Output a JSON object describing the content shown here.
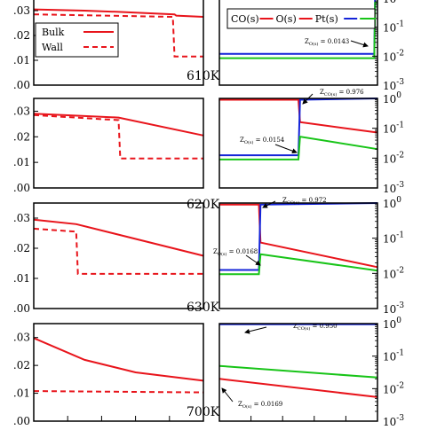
{
  "colors": {
    "red": "#e8141b",
    "blue": "#1424d8",
    "green": "#18c418",
    "frame": "#000000"
  },
  "legend_left": [
    {
      "label": "Bulk",
      "style": "solid"
    },
    {
      "label": "Wall",
      "style": "dashed"
    }
  ],
  "legend_right": [
    {
      "label": "CO(s)",
      "color": "#e8141b"
    },
    {
      "label": "O(s)",
      "color": "#e8141b"
    },
    {
      "label": "Pt(s)",
      "color": "#1424d8"
    },
    {
      "label": "",
      "color": "#18c418"
    }
  ],
  "chart_data": [
    {
      "type": "line",
      "temperature": "610K",
      "left": {
        "ylim": [
          0,
          0.035
        ],
        "yticks": [
          ".00",
          ".01",
          ".02",
          ".03"
        ],
        "series": [
          {
            "name": "Bulk",
            "x": [
              0,
              0.3,
              0.5,
              0.83,
              0.84,
              1.0
            ],
            "y": [
              0.0305,
              0.03,
              0.0295,
              0.0285,
              0.028,
              0.0275
            ]
          },
          {
            "name": "Wall",
            "x": [
              0,
              0.82,
              0.83,
              1.0
            ],
            "y": [
              0.0285,
              0.0275,
              0.0115,
              0.0115
            ]
          }
        ]
      },
      "right": {
        "yscale": "log",
        "ylim": [
          0.001,
          1.0
        ],
        "ytick_base": "10",
        "ytick_exponents": [
          "0",
          "-1",
          "-2",
          "-3"
        ],
        "series": [
          {
            "color": "#e8141b",
            "x": [
              0,
              0.98,
              0.99,
              1.0
            ],
            "y": [
              1,
              1,
              1,
              1
            ]
          },
          {
            "color": "#1424d8",
            "x": [
              0,
              0.98,
              0.985,
              1.0
            ],
            "y": [
              0.012,
              0.012,
              1,
              1
            ]
          },
          {
            "color": "#18c418",
            "x": [
              0,
              0.98,
              0.985,
              1.0
            ],
            "y": [
              0.0085,
              0.0085,
              0.7,
              0.7
            ]
          }
        ],
        "annotation": {
          "prefix": "Z",
          "sub": "O(s)",
          "value": "= 0.0143"
        }
      }
    },
    {
      "type": "line",
      "temperature": "620K",
      "left": {
        "ylim": [
          0,
          0.035
        ],
        "yticks": [
          ".00",
          ".01",
          ".02",
          ".03"
        ],
        "series": [
          {
            "name": "Bulk",
            "x": [
              0,
              0.5,
              1.0
            ],
            "y": [
              0.029,
              0.0275,
              0.0205
            ]
          },
          {
            "name": "Wall",
            "x": [
              0,
              0.5,
              0.51,
              1.0
            ],
            "y": [
              0.0285,
              0.0265,
              0.0115,
              0.0115
            ]
          }
        ]
      },
      "right": {
        "yscale": "log",
        "ylim": [
          0.001,
          1.0
        ],
        "ytick_base": "10",
        "ytick_exponents": [
          "0",
          "-1",
          "-2",
          "-3"
        ],
        "series": [
          {
            "color": "#e8141b",
            "x": [
              0,
              0.5,
              0.51,
              1.0
            ],
            "y": [
              0.9,
              0.9,
              0.16,
              0.072
            ]
          },
          {
            "color": "#1424d8",
            "x": [
              0,
              0.5,
              0.51,
              1.0
            ],
            "y": [
              0.0125,
              0.0125,
              0.9,
              1
            ]
          },
          {
            "color": "#18c418",
            "x": [
              0,
              0.5,
              0.51,
              1.0
            ],
            "y": [
              0.009,
              0.009,
              0.052,
              0.02
            ]
          }
        ],
        "annotations": [
          {
            "prefix": "Z",
            "sub": "CO(s)",
            "value": "= 0.976"
          },
          {
            "prefix": "Z",
            "sub": "O(s)",
            "value": "= 0.0154"
          }
        ]
      }
    },
    {
      "type": "line",
      "temperature": "630K",
      "left": {
        "ylim": [
          0,
          0.035
        ],
        "yticks": [
          ".00",
          ".01",
          ".02",
          ".03"
        ],
        "series": [
          {
            "name": "Bulk",
            "x": [
              0,
              0.25,
              1.0
            ],
            "y": [
              0.0295,
              0.028,
              0.0175
            ]
          },
          {
            "name": "Wall",
            "x": [
              0,
              0.25,
              0.26,
              1.0
            ],
            "y": [
              0.0265,
              0.0255,
              0.0115,
              0.0115
            ]
          }
        ]
      },
      "right": {
        "yscale": "log",
        "ylim": [
          0.001,
          1.0
        ],
        "ytick_base": "10",
        "ytick_exponents": [
          "0",
          "-1",
          "-2",
          "-3"
        ],
        "series": [
          {
            "color": "#e8141b",
            "x": [
              0,
              0.25,
              0.26,
              1.0
            ],
            "y": [
              0.9,
              0.9,
              0.075,
              0.015
            ]
          },
          {
            "color": "#1424d8",
            "x": [
              0,
              0.25,
              0.26,
              1.0
            ],
            "y": [
              0.0125,
              0.0125,
              0.9,
              1
            ]
          },
          {
            "color": "#18c418",
            "x": [
              0,
              0.25,
              0.26,
              1.0
            ],
            "y": [
              0.0095,
              0.0095,
              0.035,
              0.012
            ]
          }
        ],
        "annotations": [
          {
            "prefix": "Z",
            "sub": "CO(s)",
            "value": "= 0.972"
          },
          {
            "prefix": "Z",
            "sub": "O(s)",
            "value": "= 0.0168"
          }
        ]
      }
    },
    {
      "type": "line",
      "temperature": "700K",
      "left": {
        "ylim": [
          0,
          0.035
        ],
        "yticks": [
          ".00",
          ".01",
          ".02",
          ".03"
        ],
        "series": [
          {
            "name": "Bulk",
            "x": [
              0,
              0.3,
              0.6,
              1.0
            ],
            "y": [
              0.0298,
              0.022,
              0.0175,
              0.0145
            ]
          },
          {
            "name": "Wall",
            "x": [
              0,
              1.0
            ],
            "y": [
              0.0108,
              0.0103
            ]
          }
        ]
      },
      "right": {
        "yscale": "log",
        "ylim": [
          0.001,
          1.0
        ],
        "ytick_base": "10",
        "ytick_exponents": [
          "0",
          "-1",
          "-2",
          "-3"
        ],
        "series": [
          {
            "color": "#1424d8",
            "x": [
              0,
              1.0
            ],
            "y": [
              0.95,
              0.95
            ]
          },
          {
            "color": "#18c418",
            "x": [
              0,
              1.0
            ],
            "y": [
              0.05,
              0.022
            ]
          },
          {
            "color": "#e8141b",
            "x": [
              0,
              1.0
            ],
            "y": [
              0.02,
              0.0055
            ]
          }
        ],
        "annotations": [
          {
            "prefix": "Z",
            "sub": "CO(s)",
            "value": "= 0.950"
          },
          {
            "prefix": "Z",
            "sub": "O(s)",
            "value": "= 0.0169"
          }
        ]
      }
    }
  ]
}
